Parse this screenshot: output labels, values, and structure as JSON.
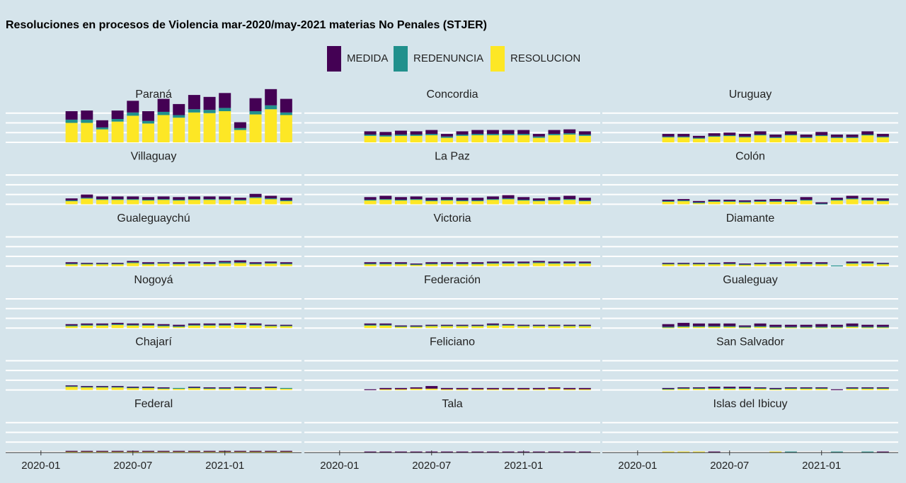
{
  "chart_data": {
    "type": "bar",
    "stacked": true,
    "facets": "3 columns x 6 rows",
    "title": "Resoluciones en procesos de Violencia mar-2020/may-2021 materias No Penales (STJER)",
    "xlabel": "",
    "ylabel": "",
    "legend_position": "top",
    "legend": [
      {
        "key": "MEDIDA",
        "label": "MEDIDA",
        "color": "#440154"
      },
      {
        "key": "REDENUNCIA",
        "label": "REDENUNCIA",
        "color": "#21908c"
      },
      {
        "key": "RESOLUCION",
        "label": "RESOLUCION",
        "color": "#fde725"
      }
    ],
    "x_ticks": [
      "2020-01",
      "2020-07",
      "2021-01"
    ],
    "months": [
      "2020-03",
      "2020-04",
      "2020-05",
      "2020-06",
      "2020-07",
      "2020-08",
      "2020-09",
      "2020-10",
      "2020-11",
      "2020-12",
      "2021-01",
      "2021-02",
      "2021-03",
      "2021-04",
      "2021-05"
    ],
    "ylim": [
      0,
      600
    ],
    "y_gridlines": [
      0,
      150,
      300,
      450
    ],
    "panels": [
      {
        "name": "Paraná",
        "RESOLUCION": [
          300,
          300,
          200,
          320,
          410,
          290,
          420,
          380,
          460,
          450,
          480,
          190,
          430,
          510,
          420
        ],
        "REDENUNCIA": [
          50,
          50,
          30,
          40,
          50,
          40,
          50,
          40,
          50,
          50,
          50,
          30,
          50,
          60,
          40
        ],
        "MEDIDA": [
          130,
          140,
          110,
          130,
          180,
          150,
          200,
          170,
          220,
          200,
          230,
          90,
          200,
          250,
          210
        ]
      },
      {
        "name": "Concordia",
        "RESOLUCION": [
          100,
          90,
          100,
          100,
          110,
          70,
          100,
          110,
          110,
          110,
          110,
          70,
          110,
          120,
          100
        ],
        "REDENUNCIA": [
          20,
          20,
          20,
          20,
          20,
          20,
          20,
          20,
          20,
          20,
          20,
          20,
          20,
          20,
          20
        ],
        "MEDIDA": [
          50,
          50,
          60,
          50,
          60,
          40,
          50,
          60,
          60,
          60,
          60,
          40,
          60,
          60,
          50
        ]
      },
      {
        "name": "Uruguay",
        "RESOLUCION": [
          80,
          80,
          60,
          90,
          100,
          80,
          110,
          70,
          110,
          70,
          100,
          70,
          70,
          110,
          80
        ],
        "REDENUNCIA": [
          10,
          10,
          10,
          10,
          10,
          10,
          10,
          10,
          10,
          10,
          10,
          10,
          10,
          10,
          10
        ],
        "MEDIDA": [
          40,
          40,
          30,
          40,
          40,
          40,
          50,
          40,
          50,
          40,
          50,
          40,
          40,
          50,
          40
        ]
      },
      {
        "name": "Villaguay",
        "RESOLUCION": [
          50,
          90,
          70,
          70,
          70,
          60,
          70,
          60,
          70,
          70,
          70,
          60,
          100,
          80,
          50
        ],
        "REDENUNCIA": [
          10,
          10,
          10,
          10,
          10,
          10,
          10,
          10,
          10,
          10,
          10,
          10,
          10,
          10,
          10
        ],
        "MEDIDA": [
          30,
          50,
          40,
          40,
          40,
          40,
          40,
          40,
          40,
          40,
          40,
          30,
          50,
          40,
          40
        ]
      },
      {
        "name": "La Paz",
        "RESOLUCION": [
          60,
          70,
          60,
          70,
          50,
          60,
          50,
          50,
          70,
          80,
          60,
          50,
          60,
          70,
          50
        ],
        "REDENUNCIA": [
          10,
          10,
          10,
          10,
          10,
          10,
          10,
          10,
          10,
          10,
          10,
          10,
          10,
          10,
          10
        ],
        "MEDIDA": [
          40,
          50,
          40,
          40,
          40,
          40,
          40,
          40,
          40,
          50,
          40,
          30,
          40,
          50,
          40
        ]
      },
      {
        "name": "Colón",
        "RESOLUCION": [
          40,
          50,
          20,
          40,
          40,
          30,
          40,
          40,
          40,
          60,
          0,
          60,
          80,
          60,
          50
        ],
        "REDENUNCIA": [
          10,
          10,
          10,
          10,
          10,
          10,
          10,
          10,
          10,
          10,
          10,
          10,
          10,
          10,
          10
        ],
        "MEDIDA": [
          20,
          20,
          20,
          20,
          20,
          20,
          20,
          30,
          20,
          40,
          20,
          30,
          40,
          30,
          30
        ]
      },
      {
        "name": "Gualeguaychú",
        "RESOLUCION": [
          30,
          30,
          30,
          30,
          50,
          30,
          40,
          30,
          40,
          30,
          40,
          50,
          30,
          40,
          30
        ],
        "REDENUNCIA": [
          10,
          10,
          10,
          10,
          10,
          10,
          10,
          10,
          10,
          10,
          20,
          10,
          10,
          10,
          10
        ],
        "MEDIDA": [
          20,
          10,
          10,
          10,
          20,
          20,
          10,
          20,
          20,
          20,
          20,
          30,
          20,
          20,
          20
        ]
      },
      {
        "name": "Victoria",
        "RESOLUCION": [
          30,
          30,
          30,
          20,
          30,
          30,
          30,
          30,
          40,
          40,
          40,
          50,
          40,
          40,
          40
        ],
        "REDENUNCIA": [
          10,
          10,
          10,
          10,
          10,
          10,
          10,
          10,
          10,
          10,
          10,
          10,
          10,
          10,
          10
        ],
        "MEDIDA": [
          20,
          20,
          20,
          10,
          20,
          20,
          20,
          20,
          20,
          20,
          20,
          20,
          20,
          20,
          20
        ]
      },
      {
        "name": "Diamante",
        "RESOLUCION": [
          30,
          30,
          30,
          30,
          30,
          20,
          30,
          30,
          40,
          30,
          30,
          0,
          40,
          40,
          30
        ],
        "REDENUNCIA": [
          10,
          10,
          10,
          10,
          10,
          10,
          10,
          10,
          10,
          10,
          10,
          10,
          10,
          10,
          10
        ],
        "MEDIDA": [
          10,
          10,
          10,
          10,
          20,
          10,
          10,
          20,
          20,
          20,
          20,
          0,
          20,
          20,
          10
        ]
      },
      {
        "name": "Nogoyá",
        "RESOLUCION": [
          30,
          40,
          40,
          50,
          40,
          40,
          30,
          20,
          40,
          40,
          40,
          50,
          40,
          30,
          30
        ],
        "REDENUNCIA": [
          10,
          10,
          10,
          10,
          10,
          10,
          10,
          10,
          10,
          10,
          10,
          10,
          10,
          10,
          10
        ],
        "MEDIDA": [
          20,
          20,
          20,
          20,
          20,
          20,
          20,
          20,
          20,
          20,
          20,
          20,
          20,
          10,
          10
        ]
      },
      {
        "name": "Federación",
        "RESOLUCION": [
          40,
          40,
          20,
          20,
          30,
          30,
          30,
          30,
          40,
          40,
          30,
          30,
          30,
          30,
          30
        ],
        "REDENUNCIA": [
          10,
          10,
          10,
          10,
          10,
          10,
          10,
          10,
          10,
          10,
          10,
          10,
          10,
          10,
          10
        ],
        "MEDIDA": [
          20,
          20,
          10,
          10,
          10,
          10,
          10,
          10,
          20,
          10,
          10,
          10,
          10,
          10,
          10
        ]
      },
      {
        "name": "Gualeguay",
        "RESOLUCION": [
          10,
          20,
          20,
          20,
          20,
          10,
          20,
          10,
          10,
          10,
          10,
          10,
          20,
          10,
          10
        ],
        "REDENUNCIA": [
          10,
          10,
          10,
          10,
          10,
          10,
          10,
          10,
          10,
          10,
          10,
          10,
          10,
          10,
          10
        ],
        "MEDIDA": [
          40,
          50,
          40,
          40,
          40,
          20,
          40,
          30,
          30,
          30,
          40,
          30,
          40,
          30,
          30
        ]
      },
      {
        "name": "Chajarí",
        "RESOLUCION": [
          50,
          40,
          40,
          40,
          30,
          30,
          20,
          20,
          30,
          20,
          20,
          30,
          20,
          30,
          20
        ],
        "REDENUNCIA": [
          10,
          10,
          10,
          10,
          10,
          10,
          10,
          10,
          10,
          10,
          10,
          10,
          10,
          10,
          10
        ],
        "MEDIDA": [
          10,
          10,
          10,
          10,
          10,
          10,
          10,
          0,
          10,
          10,
          10,
          10,
          10,
          10,
          0
        ]
      },
      {
        "name": "Feliciano",
        "RESOLUCION": [
          0,
          10,
          10,
          20,
          20,
          10,
          10,
          10,
          10,
          10,
          10,
          10,
          20,
          10,
          10
        ],
        "REDENUNCIA": [
          0,
          0,
          0,
          0,
          0,
          0,
          0,
          0,
          0,
          0,
          0,
          0,
          0,
          0,
          0
        ],
        "MEDIDA": [
          10,
          20,
          20,
          20,
          40,
          20,
          20,
          20,
          20,
          20,
          20,
          20,
          20,
          20,
          20
        ]
      },
      {
        "name": "San Salvador",
        "RESOLUCION": [
          10,
          20,
          20,
          20,
          20,
          20,
          20,
          10,
          20,
          20,
          20,
          0,
          20,
          20,
          20
        ],
        "REDENUNCIA": [
          10,
          10,
          10,
          10,
          10,
          10,
          10,
          10,
          10,
          10,
          10,
          0,
          10,
          10,
          10
        ],
        "MEDIDA": [
          10,
          10,
          10,
          20,
          20,
          20,
          10,
          10,
          10,
          10,
          10,
          10,
          10,
          10,
          10
        ]
      },
      {
        "name": "Federal",
        "RESOLUCION": [
          5,
          5,
          5,
          5,
          5,
          5,
          5,
          5,
          5,
          5,
          5,
          5,
          5,
          5,
          5
        ],
        "REDENUNCIA": [
          0,
          0,
          0,
          0,
          0,
          0,
          0,
          0,
          0,
          0,
          0,
          0,
          0,
          0,
          0
        ],
        "MEDIDA": [
          10,
          10,
          10,
          10,
          10,
          10,
          10,
          10,
          10,
          10,
          10,
          10,
          10,
          10,
          10
        ]
      },
      {
        "name": "Tala",
        "RESOLUCION": [
          0,
          0,
          0,
          0,
          0,
          0,
          0,
          0,
          0,
          0,
          0,
          0,
          0,
          0,
          0
        ],
        "REDENUNCIA": [
          0,
          0,
          0,
          0,
          0,
          0,
          0,
          0,
          0,
          0,
          0,
          0,
          0,
          0,
          0
        ],
        "MEDIDA": [
          5,
          5,
          5,
          5,
          5,
          5,
          5,
          5,
          5,
          5,
          5,
          5,
          5,
          5,
          5
        ]
      },
      {
        "name": "Islas del Ibicuy",
        "RESOLUCION": [
          5,
          5,
          5,
          0,
          0,
          0,
          0,
          5,
          0,
          0,
          0,
          0,
          0,
          0,
          0
        ],
        "REDENUNCIA": [
          0,
          0,
          0,
          0,
          0,
          0,
          0,
          0,
          5,
          0,
          0,
          5,
          0,
          5,
          0
        ],
        "MEDIDA": [
          0,
          0,
          0,
          5,
          0,
          0,
          0,
          0,
          0,
          0,
          0,
          0,
          0,
          0,
          5
        ]
      }
    ]
  }
}
